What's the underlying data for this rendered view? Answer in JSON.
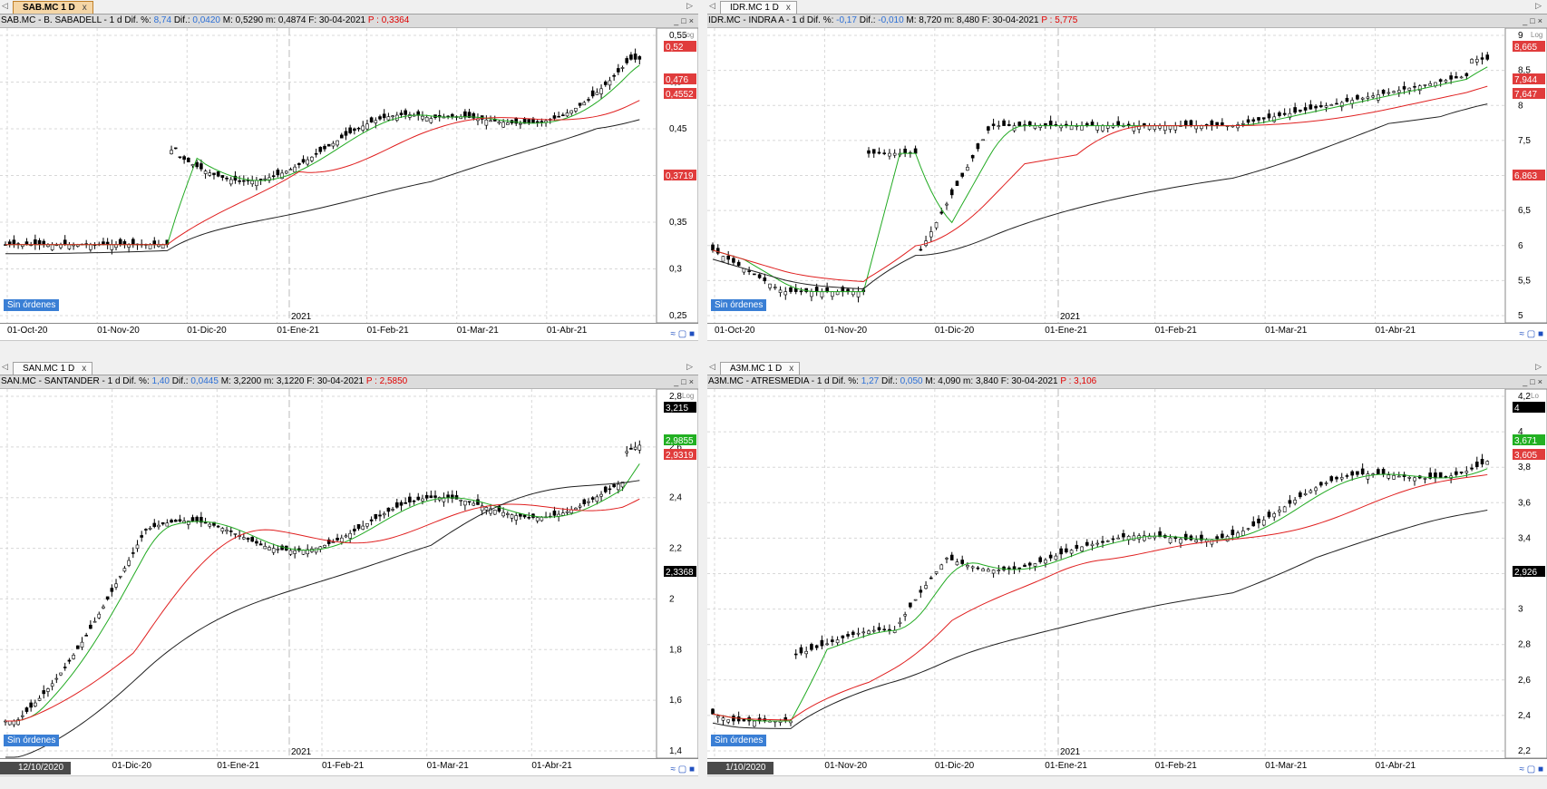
{
  "panels": [
    {
      "id": "sab",
      "tab_label": "SAB.MC 1 D",
      "tab_close": "x",
      "active": true,
      "header": {
        "prefix": "SAB.MC - B. SABADELL -  1 d  Dif. %: ",
        "pct": "8,74",
        "dif_label": "  Dif.: ",
        "dif": "0,0420",
        "mid": "  M: 0,5290  m: 0,4874  F: 30-04-2021  ",
        "p": "P : 0,3364"
      },
      "log_label": "Log",
      "orders_label": "Sin órdenes",
      "year_label": "2021",
      "xlabels": [
        "01-Oct-20",
        "01-Nov-20",
        "01-Dic-20",
        "01-Ene-21",
        "01-Feb-21",
        "01-Mar-21",
        "01-Abr-21"
      ],
      "yticks": [
        "0,55",
        "0,5",
        "0,45",
        "0,4",
        "0,35",
        "0,3",
        "0,25"
      ],
      "badges": [
        {
          "text": "0,52",
          "color": "#e03c3c"
        },
        {
          "text": "0,476",
          "color": "#e03c3c"
        },
        {
          "text": "0,4552",
          "color": "#e03c3c"
        },
        {
          "text": "0,3719",
          "color": "#e03c3c"
        }
      ]
    },
    {
      "id": "idr",
      "tab_label": "IDR.MC 1 D",
      "tab_close": "x",
      "active": false,
      "header": {
        "prefix": "IDR.MC - INDRA A -  1 d  Dif. %: ",
        "pct": "-0,17",
        "dif_label": "  Dif.: ",
        "dif": "-0,010",
        "mid": "  M: 8,720  m: 8,480  F: 30-04-2021  ",
        "p": "P : 5,775"
      },
      "log_label": "Log",
      "orders_label": "Sin órdenes",
      "year_label": "2021",
      "xlabels": [
        "01-Oct-20",
        "01-Nov-20",
        "01-Dic-20",
        "01-Ene-21",
        "01-Feb-21",
        "01-Mar-21",
        "01-Abr-21"
      ],
      "yticks": [
        "9",
        "8,5",
        "8",
        "7,5",
        "7",
        "6,5",
        "6",
        "5,5",
        "5"
      ],
      "badges": [
        {
          "text": "8,665",
          "color": "#e03c3c"
        },
        {
          "text": "7,944",
          "color": "#e03c3c"
        },
        {
          "text": "7,647",
          "color": "#e03c3c"
        },
        {
          "text": "6,863",
          "color": "#e03c3c"
        }
      ]
    },
    {
      "id": "san",
      "tab_label": "SAN.MC 1 D",
      "tab_close": "x",
      "active": false,
      "header": {
        "prefix": "SAN.MC - SANTANDER -  1 d  Dif. %: ",
        "pct": "1,40",
        "dif_label": "  Dif.: ",
        "dif": "0,0445",
        "mid": "  M: 3,2200  m: 3,1220  F: 30-04-2021  ",
        "p": "P : 2,5850"
      },
      "log_label": "Log",
      "orders_label": "Sin órdenes",
      "year_label": "2021",
      "date_highlight": "12/10/2020",
      "xlabels": [
        "01-Nov-20",
        "01-Dic-20",
        "01-Ene-21",
        "01-Feb-21",
        "01-Mar-21",
        "01-Abr-21"
      ],
      "yticks": [
        "2,8",
        "2,6",
        "2,4",
        "2,2",
        "2",
        "1,8",
        "1,6",
        "1,4"
      ],
      "badges": [
        {
          "text": "3,215",
          "color": "#000000"
        },
        {
          "text": "2,9855",
          "color": "#22b022"
        },
        {
          "text": "2,9319",
          "color": "#e03c3c"
        },
        {
          "text": "2,3368",
          "color": "#000000"
        }
      ]
    },
    {
      "id": "a3m",
      "tab_label": "A3M.MC 1 D",
      "tab_close": "x",
      "active": false,
      "header": {
        "prefix": "A3M.MC - ATRESMEDIA -  1 d  Dif. %: ",
        "pct": "1,27",
        "dif_label": "  Dif.: ",
        "dif": "0,050",
        "mid": "  M: 4,090  m: 3,840  F: 30-04-2021  ",
        "p": "P : 3,106"
      },
      "log_label": "Lo",
      "orders_label": "Sin órdenes",
      "year_label": "2021",
      "date_highlight": "1/10/2020",
      "xlabels": [
        "-20",
        "01-Nov-20",
        "01-Dic-20",
        "01-Ene-21",
        "01-Feb-21",
        "01-Mar-21",
        "01-Abr-21"
      ],
      "yticks": [
        "4,2",
        "4",
        "3,8",
        "3,6",
        "3,4",
        "3,2",
        "3",
        "2,8",
        "2,6",
        "2,4",
        "2,2"
      ],
      "badges": [
        {
          "text": "4",
          "color": "#000000"
        },
        {
          "text": "3,671",
          "color": "#22b022"
        },
        {
          "text": "3,605",
          "color": "#e03c3c"
        },
        {
          "text": "2,926",
          "color": "#000000"
        }
      ]
    }
  ],
  "colors": {
    "candle": "#000000",
    "ma_fast": "#22aa22",
    "ma_mid": "#e02020",
    "ma_slow": "#202020",
    "grid": "#d8d8d8",
    "orders": "#3a7fd5"
  }
}
